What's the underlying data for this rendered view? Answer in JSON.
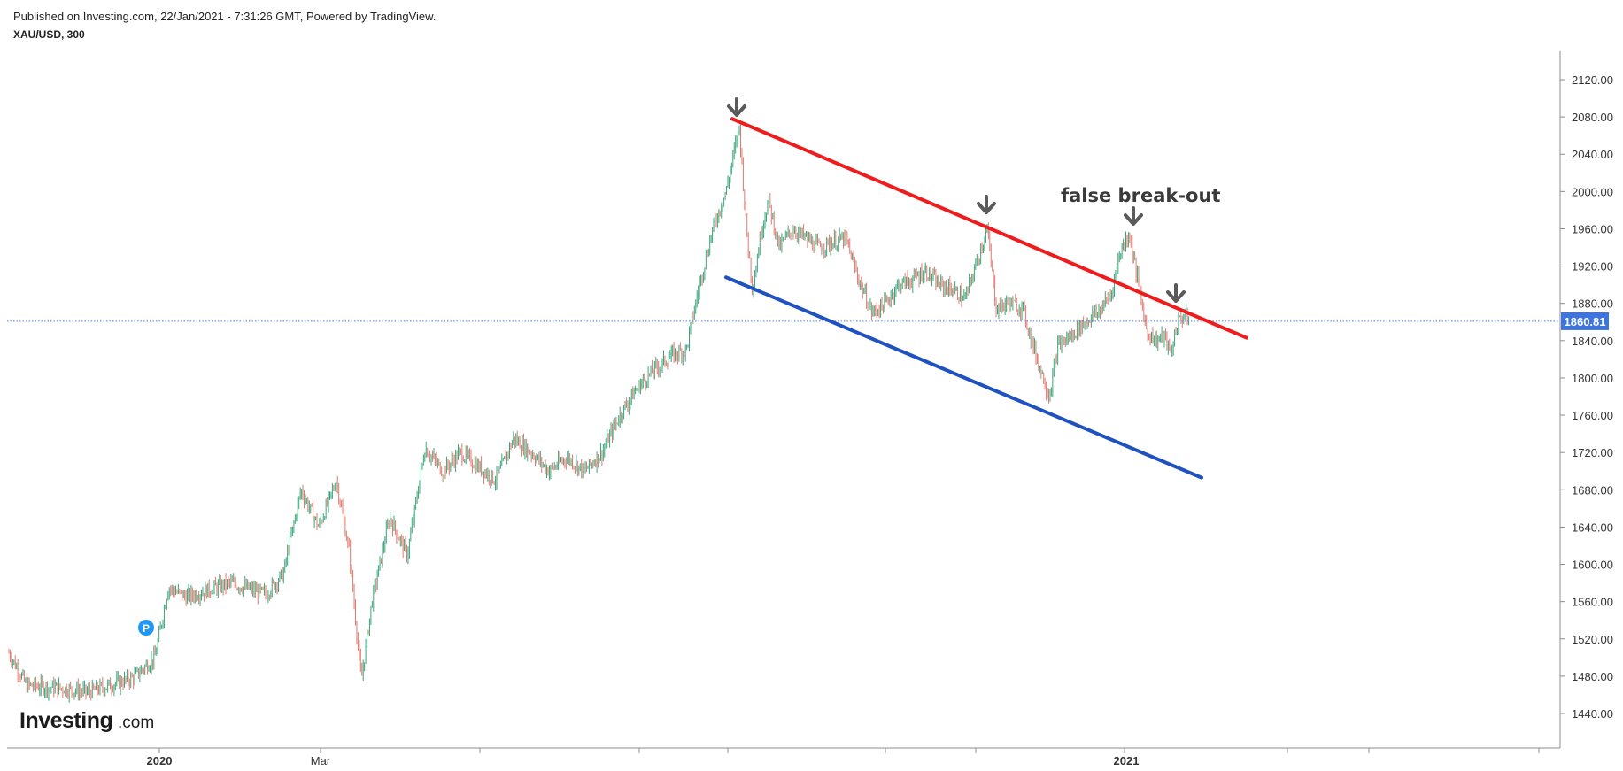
{
  "header": {
    "published": "Published on Investing.com, 22/Jan/2021 - 7:31:26 GMT, Powered by TradingView.",
    "symbol": "XAU/USD, 300"
  },
  "logo": {
    "main": "Investing",
    "suffix": ".com"
  },
  "current_price_label": "1860.81",
  "colors": {
    "up_candle": "#3aa57a",
    "down_candle": "#e0796e",
    "resistance": "#ee1c1c",
    "support": "#1f51c0",
    "price_tag": "#3d74e0",
    "arrow": "#5a5a5a"
  },
  "chart_data": {
    "type": "line",
    "title": "XAU/USD, 300",
    "subtitle": "",
    "xlabel": "",
    "ylabel": "",
    "ylim": [
      1410,
      2140
    ],
    "y_ticks": [
      1440,
      1480,
      1520,
      1560,
      1600,
      1640,
      1680,
      1720,
      1760,
      1800,
      1840,
      1880,
      1920,
      1960,
      2000,
      2040,
      2080,
      2120
    ],
    "y_tick_labels": [
      "1440.00",
      "1480.00",
      "1520.00",
      "1560.00",
      "1600.00",
      "1640.00",
      "1680.00",
      "1720.00",
      "1760.00",
      "1800.00",
      "1840.00",
      "1880.00",
      "1920.00",
      "1960.00",
      "2000.00",
      "2040.00",
      "2080.00",
      "2120.00"
    ],
    "x_tick_labels": [
      {
        "label": "2020",
        "bold": true,
        "date": "2020-01"
      },
      {
        "label": "Mar",
        "bold": false,
        "date": "2020-03"
      },
      {
        "label": "2021",
        "bold": true,
        "date": "2021-01"
      }
    ],
    "grid": false,
    "current_price": 1860.81,
    "series": [
      {
        "values": [
          [
            "2019-11",
            1505
          ],
          [
            "2019-12",
            1463
          ],
          [
            "2020-01",
            1515
          ],
          [
            "2020-01",
            1575
          ],
          [
            "2020-02",
            1560
          ],
          [
            "2020-02",
            1665
          ],
          [
            "2020-03",
            1690
          ],
          [
            "2020-03",
            1475
          ],
          [
            "2020-04",
            1600
          ],
          [
            "2020-04",
            1725
          ],
          [
            "2020-05",
            1700
          ],
          [
            "2020-06",
            1735
          ],
          [
            "2020-07",
            1780
          ],
          [
            "2020-07",
            1820
          ],
          [
            "2020-08",
            2070
          ],
          [
            "2020-08",
            1880
          ],
          [
            "2020-08",
            1990
          ],
          [
            "2020-09",
            1960
          ],
          [
            "2020-09",
            1870
          ],
          [
            "2020-10",
            1920
          ],
          [
            "2020-10",
            1900
          ],
          [
            "2020-11",
            1960
          ],
          [
            "2020-11",
            1865
          ],
          [
            "2020-11",
            1770
          ],
          [
            "2020-12",
            1850
          ],
          [
            "2020-12",
            1880
          ],
          [
            "2021-01",
            1955
          ],
          [
            "2021-01",
            1840
          ],
          [
            "2021-01",
            1865
          ],
          [
            "2021-01",
            1860.81
          ]
        ]
      }
    ],
    "annotations": [
      {
        "text": "false break-out"
      }
    ]
  }
}
